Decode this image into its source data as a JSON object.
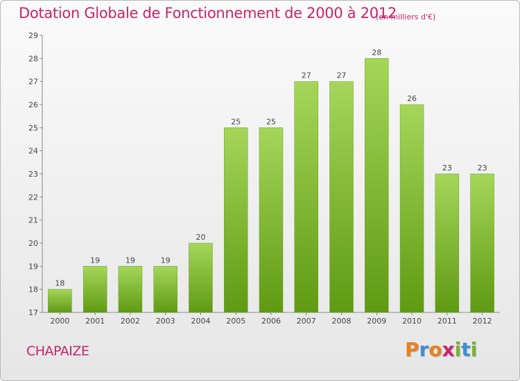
{
  "header": {
    "title": "Dotation Globale de Fonctionnement de 2000 à 2012",
    "unit_note": "(en milliers d'€)"
  },
  "footer": {
    "commune": "CHAPAIZE",
    "logo": "Proxiti"
  },
  "colors": {
    "title": "#c8246a",
    "bar_light": "#a5d65a",
    "bar_dark": "#5f9a12",
    "logo_letters": [
      "#e8801e",
      "#3b8fd8",
      "#e8801e",
      "#c8246a",
      "#7ab32e",
      "#3b8fd8",
      "#7ab32e"
    ]
  },
  "chart_data": {
    "type": "bar",
    "categories": [
      "2000",
      "2001",
      "2002",
      "2003",
      "2004",
      "2005",
      "2006",
      "2007",
      "2008",
      "2009",
      "2010",
      "2011",
      "2012"
    ],
    "values": [
      18,
      19,
      19,
      19,
      20,
      25,
      25,
      27,
      27,
      28,
      26,
      23,
      23
    ],
    "ylim": [
      17,
      29
    ],
    "yticks": [
      17,
      18,
      19,
      20,
      21,
      22,
      23,
      24,
      25,
      26,
      27,
      28,
      29
    ],
    "grid": false,
    "legend": "none"
  }
}
